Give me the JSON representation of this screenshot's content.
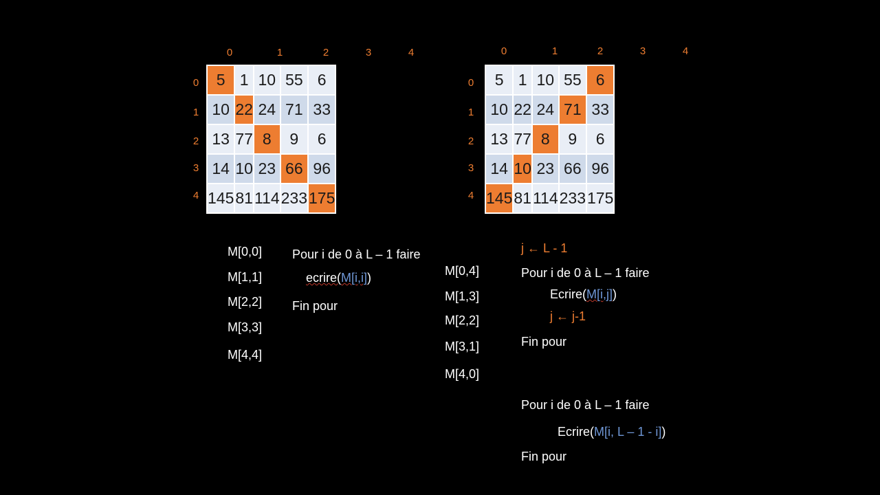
{
  "colors": {
    "background": "#000000",
    "accent": "#ED7D31",
    "index_blue": "#6F97D6"
  },
  "matrices": [
    {
      "col_headers": [
        "0",
        "1",
        "2",
        "3",
        "4"
      ],
      "row_headers": [
        "0",
        "1",
        "2",
        "3",
        "4"
      ],
      "rows": [
        [
          "5",
          "1",
          "10",
          "55",
          "6"
        ],
        [
          "10",
          "22",
          "24",
          "71",
          "33"
        ],
        [
          "13",
          "77",
          "8",
          "9",
          "6"
        ],
        [
          "14",
          "10",
          "23",
          "66",
          "96"
        ],
        [
          "145",
          "81",
          "114",
          "233",
          "175"
        ]
      ],
      "highlighted": [
        [
          0,
          0
        ],
        [
          1,
          1
        ],
        [
          2,
          2
        ],
        [
          3,
          3
        ],
        [
          4,
          4
        ]
      ]
    },
    {
      "col_headers": [
        "0",
        "1",
        "2",
        "3",
        "4"
      ],
      "row_headers": [
        "0",
        "1",
        "2",
        "3",
        "4"
      ],
      "rows": [
        [
          "5",
          "1",
          "10",
          "55",
          "6"
        ],
        [
          "10",
          "22",
          "24",
          "71",
          "33"
        ],
        [
          "13",
          "77",
          "8",
          "9",
          "6"
        ],
        [
          "14",
          "10",
          "23",
          "66",
          "96"
        ],
        [
          "145",
          "81",
          "114",
          "233",
          "175"
        ]
      ],
      "highlighted": [
        [
          0,
          4
        ],
        [
          1,
          3
        ],
        [
          2,
          2
        ],
        [
          3,
          1
        ],
        [
          4,
          0
        ]
      ]
    }
  ],
  "left": {
    "cells": [
      "M[0,0]",
      "M[1,1]",
      "M[2,2]",
      "M[3,3]",
      "M[4,4]"
    ],
    "loop_header": "Pour i de 0 à L – 1 faire",
    "write_fn": "ecrire(",
    "write_arg": "M[i,i]",
    "write_close": ")",
    "loop_end": "Fin pour"
  },
  "right": {
    "cells": [
      "M[0,4]",
      "M[1,3]",
      "M[2,2]",
      "M[3,1]",
      "M[4,0]"
    ],
    "init": "j ← L - 1",
    "loop_header": "Pour i de 0 à L – 1 faire",
    "write_fn": "Ecrire(",
    "write_arg": "M[i,j]",
    "write_close": ")",
    "decrement": "j ← j-1",
    "loop_end": "Fin pour",
    "loop2_header": "Pour i de 0 à L – 1 faire",
    "write2_fn": "Ecrire(",
    "write2_arg": "M[i, L – 1 - i]",
    "write2_close": ")",
    "loop2_end": "Fin pour"
  }
}
